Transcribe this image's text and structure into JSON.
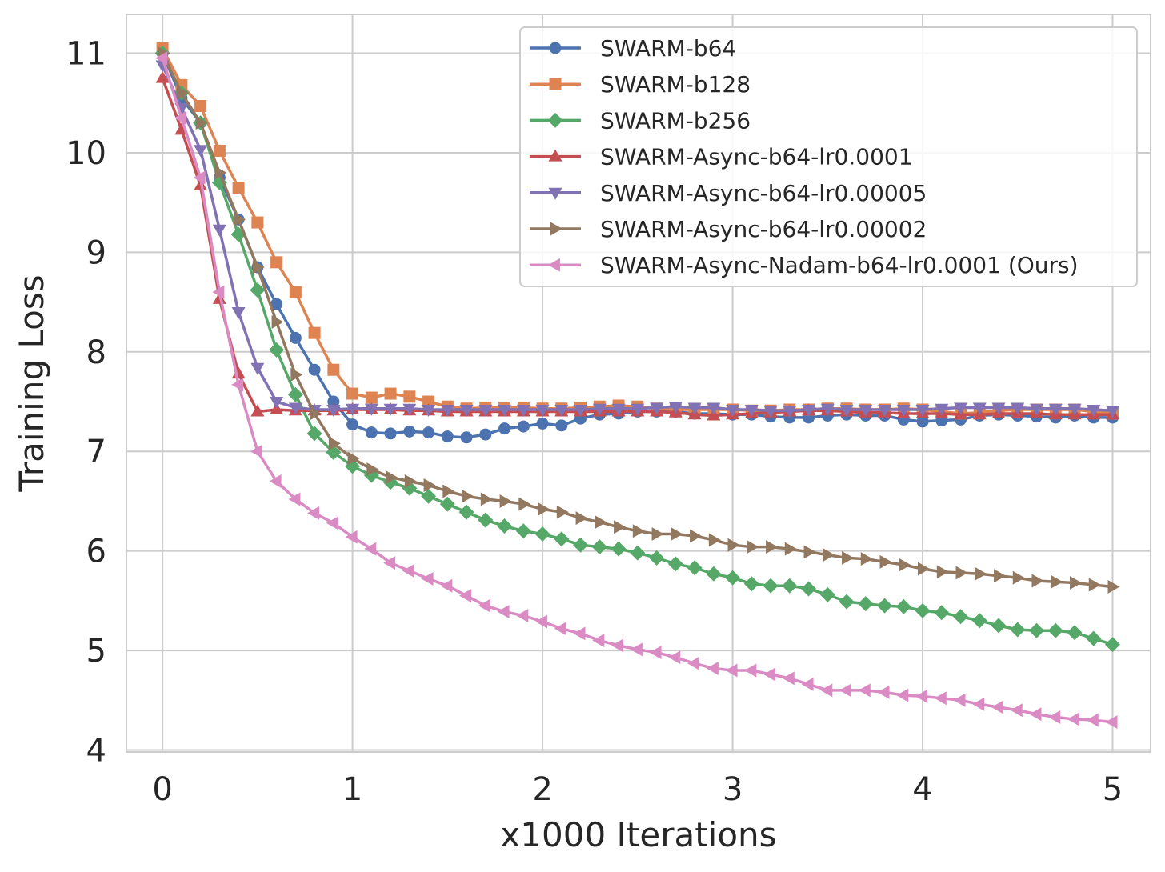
{
  "chart_data": {
    "type": "line",
    "title": "",
    "xlabel": "x1000 Iterations",
    "ylabel": "Training Loss",
    "xlim": [
      -0.19,
      5.2
    ],
    "ylim": [
      3.98,
      11.39
    ],
    "xticks": [
      0,
      1,
      2,
      3,
      4,
      5
    ],
    "yticks": [
      4,
      5,
      6,
      7,
      8,
      9,
      10,
      11
    ],
    "grid": true,
    "legend_position": "top-right",
    "x_step": 0.1,
    "series": [
      {
        "name": "SWARM-b64",
        "color": "#4c72b0",
        "marker": "circle",
        "values": [
          11.0,
          10.55,
          10.3,
          9.75,
          9.33,
          8.85,
          8.48,
          8.14,
          7.82,
          7.5,
          7.27,
          7.19,
          7.18,
          7.2,
          7.19,
          7.15,
          7.14,
          7.17,
          7.23,
          7.25,
          7.28,
          7.26,
          7.33,
          7.37,
          7.38,
          7.4,
          7.4,
          7.4,
          7.38,
          7.38,
          7.37,
          7.37,
          7.35,
          7.34,
          7.34,
          7.36,
          7.37,
          7.36,
          7.36,
          7.32,
          7.3,
          7.31,
          7.32,
          7.36,
          7.37,
          7.36,
          7.35,
          7.34,
          7.36,
          7.34,
          7.34
        ]
      },
      {
        "name": "SWARM-b128",
        "color": "#dd8452",
        "marker": "square",
        "values": [
          11.05,
          10.68,
          10.47,
          10.02,
          9.65,
          9.3,
          8.9,
          8.6,
          8.19,
          7.82,
          7.58,
          7.54,
          7.58,
          7.55,
          7.5,
          7.45,
          7.43,
          7.44,
          7.44,
          7.44,
          7.43,
          7.43,
          7.44,
          7.45,
          7.46,
          7.45,
          7.43,
          7.42,
          7.42,
          7.42,
          7.42,
          7.41,
          7.41,
          7.42,
          7.42,
          7.43,
          7.43,
          7.42,
          7.42,
          7.43,
          7.42,
          7.4,
          7.38,
          7.39,
          7.41,
          7.42,
          7.42,
          7.42,
          7.42,
          7.4,
          7.38
        ]
      },
      {
        "name": "SWARM-b256",
        "color": "#55a868",
        "marker": "diamond",
        "values": [
          11.0,
          10.6,
          10.3,
          9.7,
          9.18,
          8.62,
          8.02,
          7.57,
          7.18,
          6.99,
          6.85,
          6.76,
          6.69,
          6.63,
          6.55,
          6.47,
          6.39,
          6.31,
          6.25,
          6.2,
          6.17,
          6.12,
          6.06,
          6.04,
          6.02,
          5.98,
          5.93,
          5.87,
          5.83,
          5.77,
          5.73,
          5.67,
          5.65,
          5.65,
          5.62,
          5.56,
          5.49,
          5.47,
          5.45,
          5.44,
          5.4,
          5.38,
          5.34,
          5.3,
          5.25,
          5.21,
          5.2,
          5.2,
          5.18,
          5.12,
          5.06
        ]
      },
      {
        "name": "SWARM-Async-b64-lr0.0001",
        "color": "#c44e52",
        "marker": "triangle-up",
        "values": [
          10.75,
          10.23,
          9.67,
          8.53,
          7.78,
          7.4,
          7.42,
          7.41,
          7.41,
          7.41,
          7.42,
          7.42,
          7.42,
          7.41,
          7.41,
          7.4,
          7.4,
          7.4,
          7.4,
          7.4,
          7.4,
          7.4,
          7.4,
          7.4,
          7.4,
          7.4,
          7.4,
          7.39,
          7.37,
          7.36,
          7.37,
          7.38,
          7.39,
          7.4,
          7.41,
          7.41,
          7.4,
          7.39,
          7.39,
          7.38,
          7.38,
          7.38,
          7.37,
          7.37,
          7.38,
          7.38,
          7.38,
          7.37,
          7.37,
          7.37,
          7.37
        ]
      },
      {
        "name": "SWARM-Async-b64-lr0.00005",
        "color": "#8172b3",
        "marker": "triangle-down",
        "values": [
          10.88,
          10.45,
          10.03,
          9.23,
          8.4,
          7.84,
          7.5,
          7.44,
          7.42,
          7.42,
          7.43,
          7.43,
          7.43,
          7.43,
          7.42,
          7.42,
          7.42,
          7.42,
          7.42,
          7.42,
          7.42,
          7.42,
          7.42,
          7.43,
          7.43,
          7.43,
          7.44,
          7.45,
          7.44,
          7.44,
          7.42,
          7.42,
          7.41,
          7.41,
          7.42,
          7.43,
          7.42,
          7.42,
          7.42,
          7.42,
          7.42,
          7.43,
          7.44,
          7.44,
          7.44,
          7.44,
          7.43,
          7.43,
          7.43,
          7.42,
          7.41
        ]
      },
      {
        "name": "SWARM-Async-b64-lr0.00002",
        "color": "#937860",
        "marker": "triangle-right",
        "values": [
          11.0,
          10.6,
          10.3,
          9.8,
          9.33,
          8.85,
          8.3,
          7.77,
          7.38,
          7.08,
          6.93,
          6.82,
          6.74,
          6.7,
          6.66,
          6.6,
          6.55,
          6.52,
          6.5,
          6.47,
          6.42,
          6.39,
          6.33,
          6.29,
          6.24,
          6.2,
          6.17,
          6.17,
          6.15,
          6.11,
          6.06,
          6.04,
          6.04,
          6.02,
          5.99,
          5.96,
          5.93,
          5.92,
          5.89,
          5.86,
          5.82,
          5.79,
          5.78,
          5.77,
          5.75,
          5.73,
          5.7,
          5.69,
          5.68,
          5.66,
          5.64
        ]
      },
      {
        "name": "SWARM-Async-Nadam-b64-lr0.0001 (Ours)",
        "color": "#da8bc3",
        "marker": "triangle-left",
        "values": [
          10.95,
          10.35,
          9.75,
          8.6,
          7.67,
          7.0,
          6.7,
          6.52,
          6.38,
          6.28,
          6.14,
          6.02,
          5.88,
          5.8,
          5.72,
          5.65,
          5.55,
          5.45,
          5.39,
          5.35,
          5.29,
          5.22,
          5.17,
          5.1,
          5.05,
          5.01,
          4.98,
          4.93,
          4.87,
          4.82,
          4.8,
          4.8,
          4.76,
          4.72,
          4.66,
          4.6,
          4.6,
          4.6,
          4.58,
          4.55,
          4.54,
          4.52,
          4.5,
          4.46,
          4.43,
          4.4,
          4.36,
          4.33,
          4.31,
          4.3,
          4.28
        ]
      }
    ]
  }
}
